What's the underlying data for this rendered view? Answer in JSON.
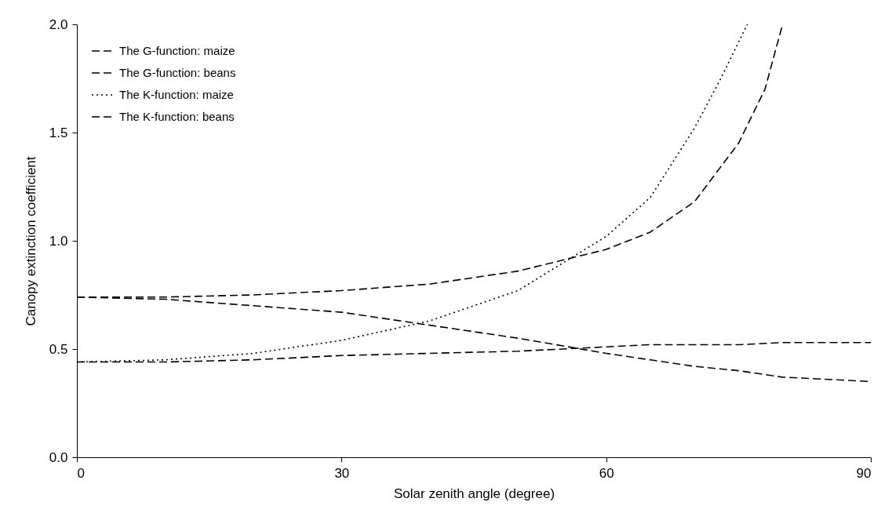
{
  "chart_data": {
    "type": "line",
    "xlabel": "Solar zenith angle (degree)",
    "ylabel": "Canopy extinction coefficient",
    "x": [
      0,
      10,
      20,
      30,
      40,
      50,
      60,
      65,
      70,
      75,
      80,
      90
    ],
    "series": [
      {
        "name": "The G-function: maize",
        "color": "#000000",
        "line_style": "dashed",
        "values": [
          0.44,
          0.44,
          0.45,
          0.47,
          0.48,
          0.49,
          0.51,
          0.52,
          0.52,
          0.52,
          0.53,
          0.53
        ]
      },
      {
        "name": "The G-function: beans",
        "color": "#000000",
        "line_style": "dashed",
        "values": [
          0.74,
          0.73,
          0.7,
          0.67,
          0.61,
          0.55,
          0.48,
          0.45,
          0.42,
          0.4,
          0.37,
          0.35
        ]
      },
      {
        "name": "The K-function: maize",
        "color": "#000000",
        "line_style": "dotted",
        "x": [
          0,
          10,
          20,
          30,
          40,
          50,
          60,
          65,
          70,
          73,
          76
        ],
        "values": [
          0.44,
          0.45,
          0.48,
          0.54,
          0.63,
          0.77,
          1.02,
          1.2,
          1.52,
          1.75,
          2.0
        ]
      },
      {
        "name": "The K-function: beans",
        "color": "#000000",
        "line_style": "dashed",
        "x": [
          0,
          10,
          20,
          30,
          40,
          50,
          60,
          65,
          70,
          75,
          78,
          80
        ],
        "values": [
          0.74,
          0.74,
          0.75,
          0.77,
          0.8,
          0.86,
          0.96,
          1.04,
          1.18,
          1.45,
          1.7,
          2.0
        ]
      }
    ],
    "xlim": [
      0,
      90
    ],
    "xticks": [
      0,
      30,
      60,
      90
    ],
    "ylim": [
      0,
      2
    ],
    "yticks": [
      {
        "value": 0,
        "label": "0.0"
      },
      0.5,
      {
        "value": 1,
        "label": "1.0"
      },
      1.5,
      {
        "value": 2,
        "label": "2.0"
      }
    ],
    "grid": false,
    "legend": "top left",
    "marker": "none"
  }
}
